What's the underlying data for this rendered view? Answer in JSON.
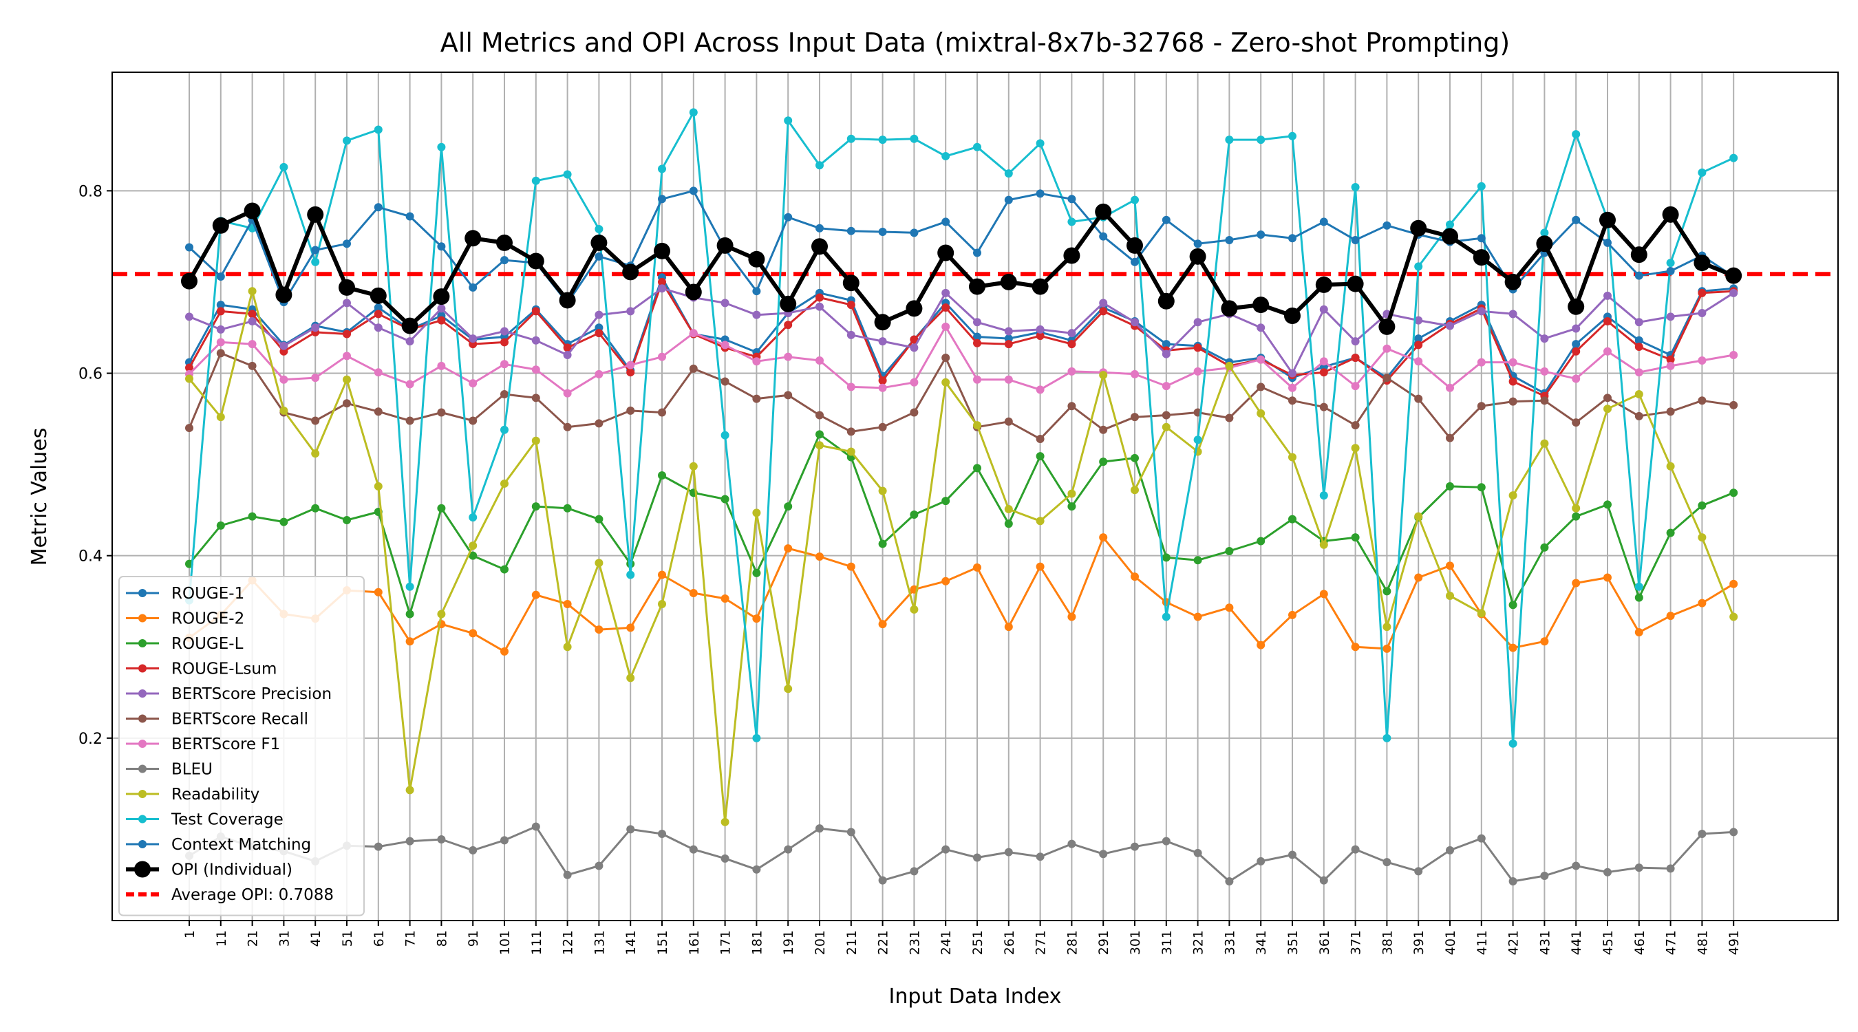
{
  "chart_data": {
    "type": "line",
    "title": "All Metrics and OPI Across Input Data (mixtral-8x7b-32768 - Zero-shot Prompting)",
    "xlabel": "Input Data Index",
    "ylabel": "Metric Values",
    "ylim": [
      0.0,
      0.93
    ],
    "yticks": [
      0.2,
      0.4,
      0.6,
      0.8
    ],
    "ytick_labels": [
      "0.2",
      "0.4",
      "0.6",
      "0.8"
    ],
    "grid": true,
    "legend_position": "lower-left",
    "x": [
      "1",
      "11",
      "21",
      "31",
      "41",
      "51",
      "61",
      "71",
      "81",
      "91",
      "101",
      "111",
      "121",
      "131",
      "141",
      "151",
      "161",
      "171",
      "181",
      "191",
      "201",
      "211",
      "221",
      "231",
      "241",
      "251",
      "261",
      "271",
      "281",
      "291",
      "301",
      "311",
      "321",
      "331",
      "341",
      "351",
      "361",
      "371",
      "381",
      "391",
      "401",
      "411",
      "421",
      "431",
      "441",
      "451",
      "461",
      "471",
      "481",
      "491"
    ],
    "series": [
      {
        "name": "ROUGE-1",
        "color": "#1f77b4",
        "width": 3,
        "marker": 6,
        "values": [
          0.612,
          0.675,
          0.67,
          0.631,
          0.652,
          0.645,
          0.672,
          0.648,
          0.663,
          0.637,
          0.64,
          0.67,
          0.632,
          0.65,
          0.603,
          0.705,
          0.643,
          0.637,
          0.623,
          0.666,
          0.688,
          0.68,
          0.597,
          0.637,
          0.677,
          0.64,
          0.638,
          0.645,
          0.636,
          0.672,
          0.657,
          0.632,
          0.63,
          0.612,
          0.617,
          0.595,
          0.607,
          0.617,
          0.595,
          0.638,
          0.657,
          0.675,
          0.597,
          0.578,
          0.632,
          0.662,
          0.636,
          0.62,
          0.69,
          0.693
        ]
      },
      {
        "name": "ROUGE-2",
        "color": "#ff7f0e",
        "width": 3,
        "marker": 6,
        "values": [
          0.31,
          0.335,
          0.373,
          0.336,
          0.331,
          0.362,
          0.36,
          0.306,
          0.325,
          0.315,
          0.295,
          0.357,
          0.347,
          0.319,
          0.321,
          0.379,
          0.359,
          0.353,
          0.331,
          0.408,
          0.399,
          0.388,
          0.325,
          0.363,
          0.372,
          0.387,
          0.322,
          0.388,
          0.333,
          0.42,
          0.377,
          0.349,
          0.333,
          0.343,
          0.302,
          0.335,
          0.358,
          0.3,
          0.298,
          0.376,
          0.389,
          0.336,
          0.299,
          0.306,
          0.37,
          0.376,
          0.316,
          0.334,
          0.348,
          0.369
        ]
      },
      {
        "name": "ROUGE-L",
        "color": "#2ca02c",
        "width": 3,
        "marker": 6,
        "values": [
          0.391,
          0.433,
          0.443,
          0.437,
          0.452,
          0.439,
          0.448,
          0.336,
          0.452,
          0.4,
          0.385,
          0.454,
          0.452,
          0.44,
          0.391,
          0.488,
          0.469,
          0.462,
          0.381,
          0.454,
          0.533,
          0.508,
          0.413,
          0.445,
          0.46,
          0.496,
          0.435,
          0.509,
          0.454,
          0.503,
          0.507,
          0.398,
          0.395,
          0.405,
          0.416,
          0.44,
          0.416,
          0.42,
          0.361,
          0.442,
          0.476,
          0.475,
          0.346,
          0.409,
          0.443,
          0.456,
          0.354,
          0.425,
          0.455,
          0.469
        ]
      },
      {
        "name": "ROUGE-Lsum",
        "color": "#d62728",
        "width": 3,
        "marker": 6,
        "values": [
          0.606,
          0.668,
          0.665,
          0.624,
          0.645,
          0.643,
          0.665,
          0.648,
          0.658,
          0.632,
          0.634,
          0.668,
          0.628,
          0.644,
          0.601,
          0.7,
          0.643,
          0.628,
          0.618,
          0.653,
          0.683,
          0.675,
          0.592,
          0.637,
          0.672,
          0.633,
          0.632,
          0.641,
          0.632,
          0.668,
          0.652,
          0.625,
          0.628,
          0.608,
          0.615,
          0.598,
          0.601,
          0.617,
          0.592,
          0.631,
          0.654,
          0.671,
          0.591,
          0.575,
          0.624,
          0.657,
          0.629,
          0.615,
          0.688,
          0.69
        ]
      },
      {
        "name": "BERTScore Precision",
        "color": "#9467bd",
        "width": 3,
        "marker": 6,
        "values": [
          0.662,
          0.648,
          0.657,
          0.63,
          0.65,
          0.677,
          0.65,
          0.635,
          0.671,
          0.638,
          0.646,
          0.636,
          0.62,
          0.664,
          0.668,
          0.693,
          0.683,
          0.677,
          0.664,
          0.666,
          0.673,
          0.642,
          0.635,
          0.628,
          0.688,
          0.656,
          0.646,
          0.648,
          0.644,
          0.677,
          0.656,
          0.621,
          0.656,
          0.665,
          0.65,
          0.6,
          0.67,
          0.635,
          0.665,
          0.658,
          0.652,
          0.668,
          0.665,
          0.638,
          0.649,
          0.685,
          0.656,
          0.662,
          0.666,
          0.688
        ]
      },
      {
        "name": "BERTScore Recall",
        "color": "#8c564b",
        "width": 3,
        "marker": 6,
        "values": [
          0.54,
          0.622,
          0.608,
          0.557,
          0.548,
          0.567,
          0.558,
          0.548,
          0.557,
          0.548,
          0.577,
          0.573,
          0.541,
          0.545,
          0.559,
          0.557,
          0.605,
          0.591,
          0.572,
          0.576,
          0.554,
          0.536,
          0.541,
          0.557,
          0.617,
          0.541,
          0.547,
          0.528,
          0.564,
          0.538,
          0.552,
          0.554,
          0.557,
          0.551,
          0.585,
          0.57,
          0.563,
          0.543,
          0.595,
          0.572,
          0.529,
          0.564,
          0.569,
          0.57,
          0.546,
          0.573,
          0.553,
          0.558,
          0.57,
          0.565
        ]
      },
      {
        "name": "BERTScore F1",
        "color": "#e377c2",
        "width": 3,
        "marker": 6,
        "values": [
          0.599,
          0.634,
          0.632,
          0.593,
          0.595,
          0.619,
          0.601,
          0.588,
          0.608,
          0.589,
          0.61,
          0.604,
          0.578,
          0.599,
          0.609,
          0.618,
          0.644,
          0.631,
          0.613,
          0.618,
          0.614,
          0.585,
          0.584,
          0.59,
          0.651,
          0.593,
          0.593,
          0.582,
          0.602,
          0.601,
          0.599,
          0.586,
          0.602,
          0.606,
          0.615,
          0.584,
          0.613,
          0.586,
          0.627,
          0.613,
          0.584,
          0.612,
          0.612,
          0.602,
          0.594,
          0.624,
          0.601,
          0.608,
          0.614,
          0.62
        ]
      },
      {
        "name": "BLEU",
        "color": "#7f7f7f",
        "width": 3,
        "marker": 6,
        "values": [
          0.071,
          0.092,
          0.081,
          0.076,
          0.065,
          0.082,
          0.081,
          0.087,
          0.089,
          0.077,
          0.088,
          0.103,
          0.05,
          0.06,
          0.1,
          0.095,
          0.078,
          0.068,
          0.056,
          0.078,
          0.101,
          0.097,
          0.044,
          0.054,
          0.078,
          0.069,
          0.075,
          0.07,
          0.084,
          0.073,
          0.081,
          0.087,
          0.074,
          0.043,
          0.065,
          0.072,
          0.044,
          0.078,
          0.064,
          0.054,
          0.077,
          0.09,
          0.043,
          0.049,
          0.06,
          0.053,
          0.058,
          0.057,
          0.095,
          0.097
        ]
      },
      {
        "name": "Readability",
        "color": "#bcbd22",
        "width": 3,
        "marker": 6,
        "values": [
          0.594,
          0.552,
          0.69,
          0.559,
          0.512,
          0.593,
          0.476,
          0.143,
          0.336,
          0.411,
          0.479,
          0.526,
          0.3,
          0.392,
          0.266,
          0.347,
          0.498,
          0.108,
          0.447,
          0.254,
          0.521,
          0.514,
          0.471,
          0.341,
          0.59,
          0.543,
          0.451,
          0.438,
          0.468,
          0.598,
          0.472,
          0.541,
          0.514,
          0.608,
          0.556,
          0.508,
          0.412,
          0.518,
          0.322,
          0.443,
          0.356,
          0.337,
          0.466,
          0.523,
          0.452,
          0.561,
          0.577,
          0.498,
          0.42,
          0.333
        ]
      },
      {
        "name": "Test Coverage",
        "color": "#17becf",
        "width": 3,
        "marker": 6,
        "values": [
          0.351,
          0.767,
          0.759,
          0.826,
          0.722,
          0.855,
          0.867,
          0.366,
          0.848,
          0.442,
          0.538,
          0.811,
          0.818,
          0.758,
          0.379,
          0.824,
          0.886,
          0.532,
          0.2,
          0.877,
          0.828,
          0.857,
          0.856,
          0.857,
          0.838,
          0.848,
          0.819,
          0.852,
          0.766,
          0.771,
          0.79,
          0.333,
          0.527,
          0.856,
          0.856,
          0.86,
          0.466,
          0.804,
          0.2,
          0.717,
          0.763,
          0.805,
          0.194,
          0.754,
          0.862,
          0.769,
          0.366,
          0.721,
          0.82,
          0.836
        ]
      },
      {
        "name": "Context Matching",
        "color": "#1f77b4",
        "width": 3,
        "marker": 6,
        "values": [
          0.738,
          0.706,
          0.768,
          0.678,
          0.735,
          0.742,
          0.782,
          0.772,
          0.739,
          0.694,
          0.724,
          0.721,
          0.677,
          0.728,
          0.718,
          0.791,
          0.8,
          0.736,
          0.69,
          0.771,
          0.759,
          0.756,
          0.755,
          0.754,
          0.766,
          0.732,
          0.79,
          0.797,
          0.791,
          0.75,
          0.722,
          0.768,
          0.742,
          0.746,
          0.752,
          0.748,
          0.766,
          0.746,
          0.762,
          0.752,
          0.744,
          0.748,
          0.692,
          0.732,
          0.768,
          0.743,
          0.707,
          0.712,
          0.729,
          0.706
        ]
      },
      {
        "name": "OPI (Individual)",
        "color": "#000000",
        "width": 6,
        "marker": 12,
        "values": [
          0.701,
          0.762,
          0.778,
          0.686,
          0.774,
          0.694,
          0.685,
          0.652,
          0.684,
          0.748,
          0.743,
          0.723,
          0.68,
          0.743,
          0.711,
          0.734,
          0.689,
          0.74,
          0.725,
          0.676,
          0.739,
          0.699,
          0.656,
          0.671,
          0.732,
          0.695,
          0.7,
          0.695,
          0.729,
          0.777,
          0.74,
          0.679,
          0.728,
          0.671,
          0.675,
          0.663,
          0.697,
          0.698,
          0.651,
          0.759,
          0.75,
          0.727,
          0.7,
          0.742,
          0.673,
          0.768,
          0.73,
          0.774,
          0.721,
          0.707
        ]
      }
    ],
    "reference_line": {
      "name": "Average OPI: 0.7088",
      "value": 0.7088,
      "color": "#ff0000",
      "style": "dashed"
    }
  }
}
